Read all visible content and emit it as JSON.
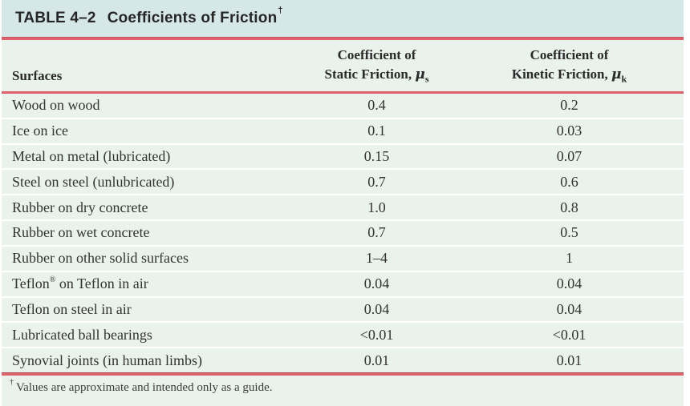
{
  "colors": {
    "title_bar_bg": "#d6e7e8",
    "table_bg": "#eaf2ec",
    "rule": "#dd626b",
    "row_divider": "#ffffff"
  },
  "table": {
    "number": "TABLE 4–2",
    "title": "Coefficients of Friction",
    "title_footnote_marker": "†",
    "columns": {
      "surfaces": {
        "label": "Surfaces"
      },
      "static": {
        "line1": "Coefficient of",
        "line2": "Static Friction,",
        "symbol": "μ",
        "subscript": "s"
      },
      "kinetic": {
        "line1": "Coefficient of",
        "line2": "Kinetic Friction,",
        "symbol": "μ",
        "subscript": "k"
      }
    },
    "rows": [
      {
        "surface": "Wood on wood",
        "static": "0.4",
        "kinetic": "0.2"
      },
      {
        "surface": "Ice on ice",
        "static": "0.1",
        "kinetic": "0.03"
      },
      {
        "surface": "Metal on metal (lubricated)",
        "static": "0.15",
        "kinetic": "0.07"
      },
      {
        "surface": "Steel on steel (unlubricated)",
        "static": "0.7",
        "kinetic": "0.6"
      },
      {
        "surface": "Rubber on dry concrete",
        "static": "1.0",
        "kinetic": "0.8"
      },
      {
        "surface": "Rubber on wet concrete",
        "static": "0.7",
        "kinetic": "0.5"
      },
      {
        "surface": "Rubber on other solid surfaces",
        "static": "1–4",
        "kinetic": "1"
      },
      {
        "surface": "Teflon® on Teflon in air",
        "static": "0.04",
        "kinetic": "0.04"
      },
      {
        "surface": "Teflon on steel in air",
        "static": "0.04",
        "kinetic": "0.04"
      },
      {
        "surface": "Lubricated ball bearings",
        "static": "<0.01",
        "kinetic": "<0.01"
      },
      {
        "surface": "Synovial joints (in human limbs)",
        "static": "0.01",
        "kinetic": "0.01"
      }
    ],
    "footnote_marker": "†",
    "footnote": "Values are approximate and intended only as a guide."
  }
}
